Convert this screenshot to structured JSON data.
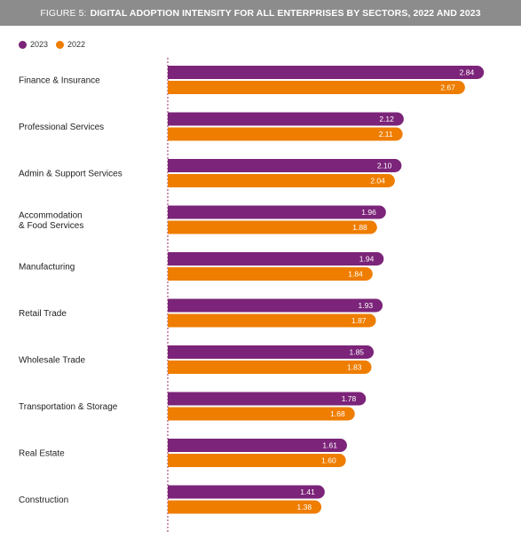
{
  "figure": {
    "label": "FIGURE 5:",
    "title": "DIGITAL ADOPTION INTENSITY FOR ALL ENTERPRISES BY SECTORS, 2022 AND 2023"
  },
  "colors": {
    "header_bg": "#8c8c8c",
    "series_2023": "#7b2479",
    "series_2022": "#ee7d00",
    "axis_line": "#9b2a6a"
  },
  "chart_data": {
    "type": "bar",
    "orientation": "horizontal",
    "title": "DIGITAL ADOPTION INTENSITY FOR ALL ENTERPRISES BY SECTORS, 2022 AND 2023",
    "categories": [
      "Finance & Insurance",
      "Professional Services",
      "Admin & Support Services",
      "Accommodation\n& Food Services",
      "Manufacturing",
      "Retail Trade",
      "Wholesale Trade",
      "Transportation & Storage",
      "Real Estate",
      "Construction"
    ],
    "series": [
      {
        "name": "2023",
        "color": "#7b2479",
        "values": [
          2.84,
          2.12,
          2.1,
          1.96,
          1.94,
          1.93,
          1.85,
          1.78,
          1.61,
          1.41
        ]
      },
      {
        "name": "2022",
        "color": "#ee7d00",
        "values": [
          2.67,
          2.11,
          2.04,
          1.88,
          1.84,
          1.87,
          1.83,
          1.68,
          1.6,
          1.38
        ]
      }
    ],
    "value_labels": [
      [
        "2.84",
        "2.12",
        "2.10",
        "1.96",
        "1.94",
        "1.93",
        "1.85",
        "1.78",
        "1.61",
        "1.41"
      ],
      [
        "2.67",
        "2.11",
        "2.04",
        "1.88",
        "1.84",
        "1.87",
        "1.83",
        "1.68",
        "1.60",
        "1.38"
      ]
    ],
    "xlim": [
      0,
      2.95
    ],
    "legend_position": "top-left",
    "grid": false
  }
}
